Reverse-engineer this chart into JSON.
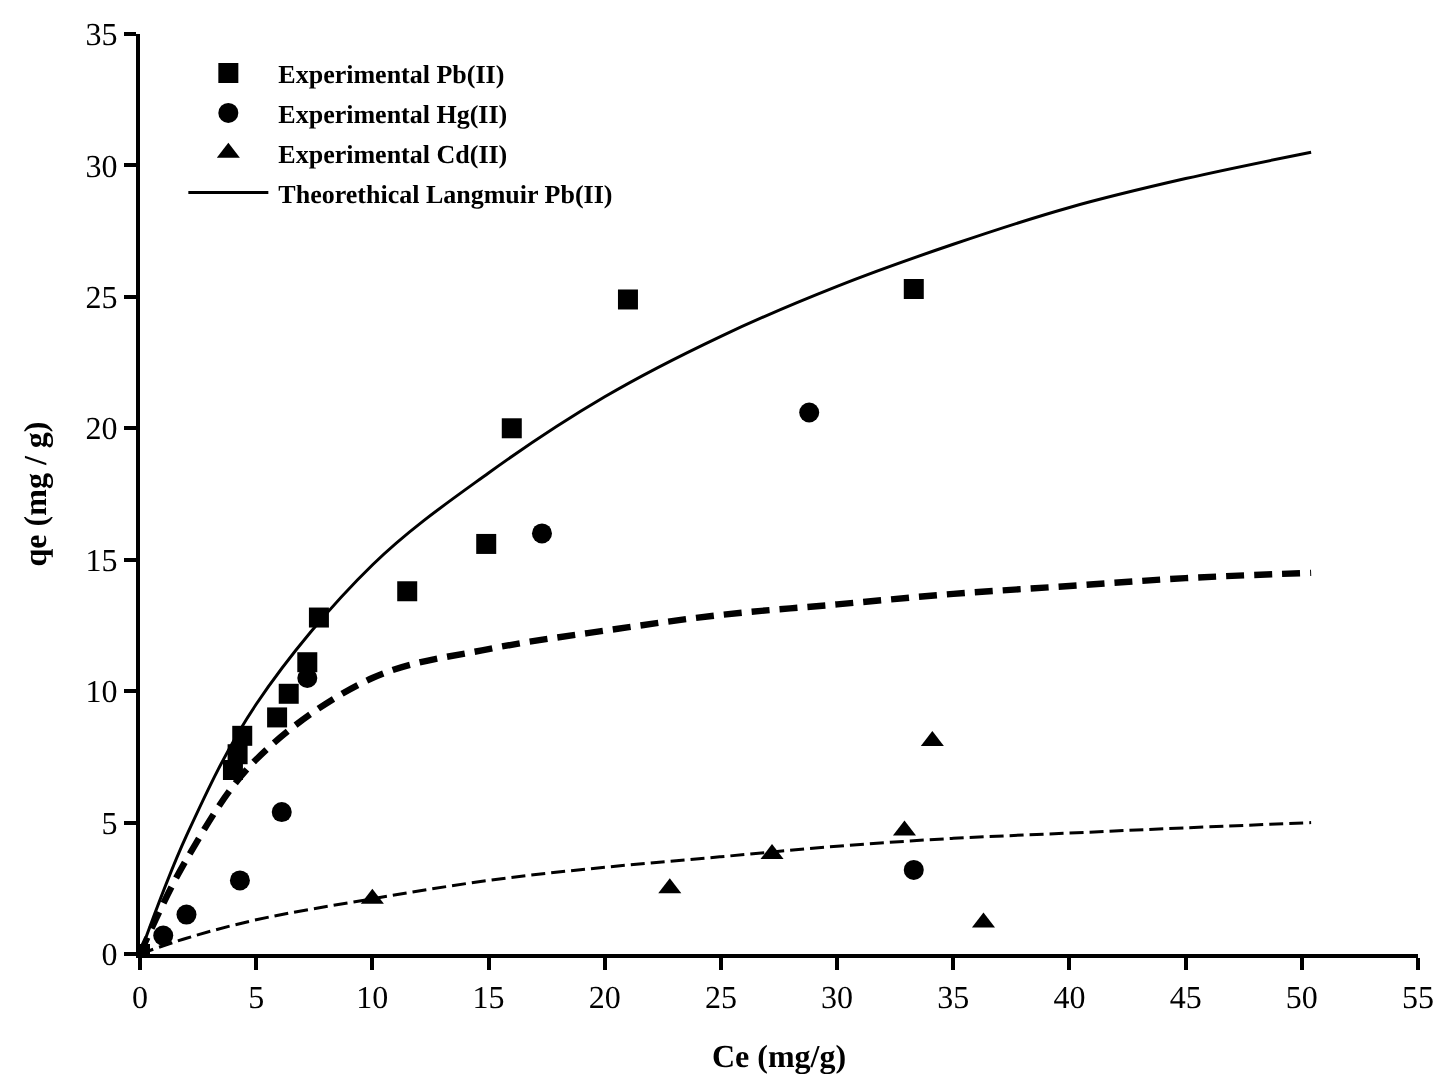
{
  "chart_data": {
    "type": "scatter",
    "xlabel": "Ce (mg/g)",
    "ylabel": "qe (mg / g)",
    "xlim": [
      0,
      55
    ],
    "xticks": [
      0,
      5,
      10,
      15,
      20,
      25,
      30,
      35,
      40,
      45,
      50,
      55
    ],
    "ylim": [
      0,
      35
    ],
    "yticks": [
      0,
      5,
      10,
      15,
      20,
      25,
      30,
      35
    ],
    "legend": "top left",
    "series": [
      {
        "name": "Experimental Pb(II)",
        "marker": "square",
        "color": "#000000",
        "x": [
          0,
          1,
          4.0,
          4.2,
          4.4,
          5.9,
          6.4,
          7.2,
          7.7,
          11.5,
          14.9,
          16.0,
          21.0,
          33.3
        ],
        "values": [
          0,
          null,
          7.0,
          7.6,
          8.3,
          9.0,
          9.9,
          11.1,
          12.8,
          13.8,
          15.6,
          20.0,
          24.9,
          25.3
        ]
      },
      {
        "name": "Experimental Hg(II)",
        "marker": "circle",
        "color": "#000000",
        "x": [
          1,
          2,
          4.3,
          6.1,
          7.2,
          17.3,
          28.8,
          33.3
        ],
        "values": [
          0.7,
          1.5,
          2.8,
          5.4,
          10.5,
          16.0,
          20.6,
          3.2
        ]
      },
      {
        "name": "Experimental Cd(II)",
        "marker": "triangle",
        "color": "#000000",
        "x": [
          10,
          22.8,
          27.2,
          32.9,
          34.1,
          36.3
        ],
        "values": [
          2.1,
          2.5,
          3.8,
          4.7,
          8.1,
          1.2
        ]
      },
      {
        "name": "Theorethical Langmuir Pb(II)",
        "type": "line",
        "line_style": "solid",
        "marker": "none",
        "color": "#000000",
        "x": [
          0,
          2,
          5,
          10,
          15,
          20,
          25,
          30,
          35,
          40,
          45,
          50.4
        ],
        "values": [
          0,
          4.5,
          9.5,
          14.8,
          18.3,
          21.2,
          23.5,
          25.4,
          27.0,
          28.4,
          29.5,
          30.5
        ]
      },
      {
        "type": "line",
        "line_style": "dashed",
        "marker": "none",
        "color": "#000000",
        "x": [
          0,
          2,
          5,
          10,
          15,
          20,
          25,
          30,
          35,
          40,
          45,
          50.4
        ],
        "values": [
          0,
          3.6,
          7.4,
          10.5,
          11.6,
          12.3,
          12.9,
          13.3,
          13.7,
          14.0,
          14.3,
          14.5
        ]
      },
      {
        "type": "line",
        "line_style": "dashed",
        "marker": "none",
        "color": "#000000",
        "x": [
          0,
          2,
          5,
          10,
          15,
          20,
          25,
          30,
          35,
          40,
          45,
          50.4
        ],
        "values": [
          0,
          0.6,
          1.3,
          2.1,
          2.8,
          3.3,
          3.7,
          4.1,
          4.4,
          4.6,
          4.8,
          5.0
        ]
      }
    ]
  }
}
